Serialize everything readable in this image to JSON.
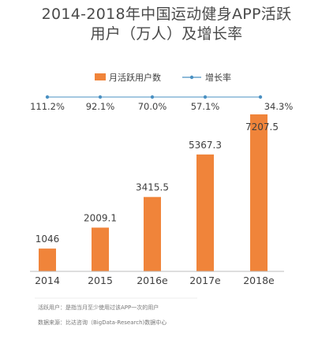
{
  "header": {
    "title_line1": "2014-2018年中国运动健身APP活跃",
    "title_line2": "用户（万人）及增长率"
  },
  "chart_data": {
    "type": "bar",
    "title": "2014-2018年中国运动健身APP活跃用户（万人）及增长率",
    "categories": [
      "2014",
      "2015",
      "2016e",
      "2017e",
      "2018e"
    ],
    "series": [
      {
        "name": "月活跃用户数",
        "type": "bar",
        "values": [
          1046,
          2009.1,
          3415.5,
          5367.3,
          7207.5
        ],
        "labels": [
          "1046",
          "2009.1",
          "3415.5",
          "5367.3",
          "7207.5"
        ],
        "color": "#f0843a"
      },
      {
        "name": "增长率",
        "type": "line",
        "values": [
          111.2,
          92.1,
          70.0,
          57.1,
          34.3
        ],
        "labels": [
          "111.2%",
          "92.1%",
          "70.0%",
          "57.1%",
          "34.3%"
        ],
        "color": "#4a90c2"
      }
    ],
    "ylim": [
      0,
      8000
    ],
    "grid": false,
    "legend": "top-center"
  },
  "footnotes": {
    "definition": "活跃用户：是指当月至少使用过该APP一次的用户",
    "source": "数据来源：比达咨询（BigData-Research)数据中心"
  }
}
